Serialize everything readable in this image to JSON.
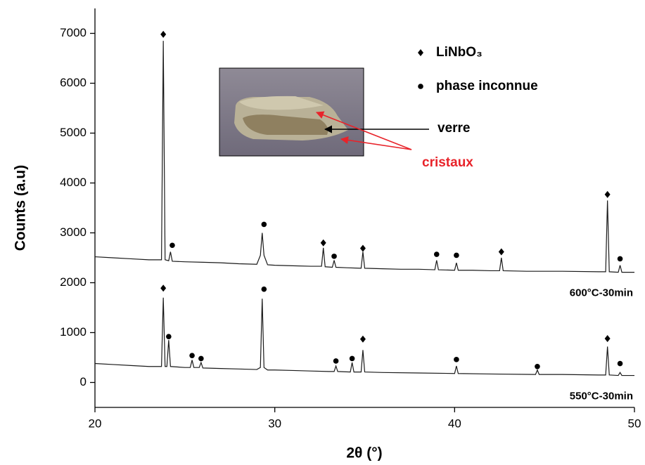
{
  "chart_data": {
    "type": "line",
    "xlabel": "2θ (°)",
    "ylabel": "Counts (a.u)",
    "xlim": [
      20,
      50
    ],
    "xticks": [
      20,
      30,
      40,
      50
    ],
    "ylim": [
      -500,
      7500
    ],
    "yticks": [
      0,
      1000,
      2000,
      3000,
      4000,
      5000,
      6000,
      7000
    ],
    "legend": "upper right",
    "series": [
      {
        "name": "600°C-30min",
        "type": "line",
        "color": "#1a1a1a",
        "x": [
          20,
          21,
          22,
          23,
          23.7,
          23.8,
          23.9,
          24.1,
          24.2,
          24.3,
          25,
          26,
          27,
          28,
          29,
          29.2,
          29.3,
          29.4,
          29.6,
          30,
          31,
          32,
          32.6,
          32.7,
          32.8,
          33.2,
          33.3,
          33.4,
          34,
          34.8,
          34.9,
          35,
          36,
          37,
          38,
          38.9,
          39,
          39.1,
          40,
          40.1,
          40.2,
          41,
          42,
          42.5,
          42.6,
          42.7,
          44,
          46,
          48,
          48.4,
          48.5,
          48.6,
          49.1,
          49.2,
          49.3,
          50
        ],
        "values": [
          2520,
          2500,
          2480,
          2460,
          2460,
          6850,
          2460,
          2440,
          2620,
          2430,
          2420,
          2410,
          2400,
          2380,
          2370,
          2550,
          3000,
          2550,
          2360,
          2350,
          2340,
          2330,
          2330,
          2700,
          2320,
          2310,
          2450,
          2310,
          2300,
          2290,
          2620,
          2290,
          2280,
          2270,
          2270,
          2260,
          2450,
          2260,
          2250,
          2400,
          2250,
          2250,
          2240,
          2240,
          2500,
          2240,
          2230,
          2230,
          2220,
          2220,
          3650,
          2220,
          2210,
          2350,
          2210,
          2210
        ]
      },
      {
        "name": "550°C-30min",
        "type": "line",
        "color": "#1a1a1a",
        "x": [
          20,
          21,
          22,
          23,
          23.7,
          23.8,
          23.9,
          24,
          24.1,
          24.2,
          25,
          25.3,
          25.4,
          25.5,
          25.8,
          25.9,
          26,
          27,
          28,
          29,
          29.2,
          29.3,
          29.4,
          29.6,
          30,
          31,
          32,
          33,
          33.3,
          33.4,
          33.5,
          34.2,
          34.3,
          34.4,
          34.8,
          34.9,
          35,
          36,
          38,
          40,
          40.1,
          40.2,
          42,
          44.5,
          44.6,
          44.7,
          46,
          48,
          48.4,
          48.5,
          48.6,
          49.1,
          49.2,
          49.3,
          50
        ],
        "values": [
          380,
          360,
          340,
          320,
          320,
          1700,
          320,
          320,
          850,
          320,
          300,
          300,
          450,
          300,
          300,
          400,
          290,
          280,
          270,
          260,
          300,
          1680,
          300,
          250,
          250,
          240,
          230,
          220,
          220,
          330,
          220,
          210,
          400,
          210,
          210,
          650,
          210,
          200,
          190,
          180,
          330,
          180,
          170,
          160,
          250,
          160,
          160,
          150,
          150,
          720,
          150,
          140,
          200,
          140,
          140
        ]
      },
      {
        "name": "LiNbO₃",
        "type": "scatter",
        "marker": "diamond",
        "color": "#000000",
        "x": [
          23.8,
          32.7,
          34.9,
          42.6,
          48.5,
          23.8,
          34.9,
          48.5
        ],
        "values": [
          6980,
          2800,
          2690,
          2620,
          3770,
          1890,
          870,
          880
        ]
      },
      {
        "name": "phase inconnue",
        "type": "scatter",
        "marker": "circle",
        "color": "#000000",
        "x": [
          24.3,
          29.4,
          33.3,
          39.0,
          40.1,
          49.2,
          24.1,
          25.4,
          25.9,
          29.4,
          33.4,
          34.3,
          40.1,
          44.6,
          49.2
        ],
        "values": [
          2750,
          3170,
          2530,
          2570,
          2550,
          2480,
          920,
          540,
          480,
          1870,
          430,
          480,
          460,
          320,
          380
        ]
      }
    ],
    "annotations": [
      {
        "text": "verre",
        "color": "#000000"
      },
      {
        "text": "cristaux",
        "color": "#e8232a"
      }
    ]
  }
}
